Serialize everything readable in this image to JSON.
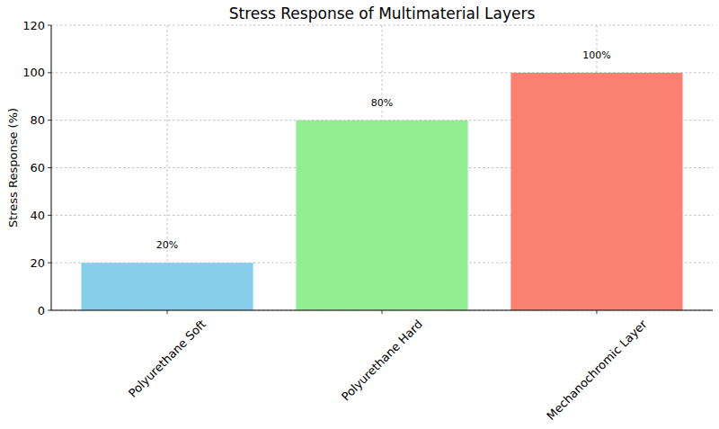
{
  "chart_data": {
    "type": "bar",
    "title": "Stress Response of Multimaterial Layers",
    "y_label": "Stress Response (%)",
    "categories": [
      "Polyurethane Soft",
      "Polyurethane Hard",
      "Mechanochromic Layer"
    ],
    "values": [
      20,
      80,
      100
    ],
    "value_labels": [
      "20%",
      "80%",
      "100%"
    ],
    "colors": [
      "#87ceeb",
      "#90ee90",
      "#fa8072"
    ],
    "ylim": [
      0,
      120
    ],
    "yticks": [
      0,
      20,
      40,
      60,
      80,
      100,
      120
    ],
    "grid": true,
    "data_labels": true
  }
}
